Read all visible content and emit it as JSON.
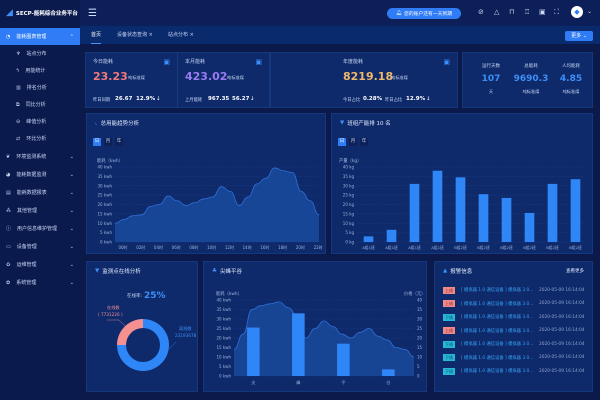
{
  "header": {
    "title": "SECP-能耗综合业务平台",
    "notice": "您的账户还有一天到期",
    "icons": [
      "shield-icon",
      "warning-icon",
      "lock-icon",
      "shirt-icon",
      "translate-icon",
      "fullscreen-icon"
    ]
  },
  "tabs": [
    {
      "label": "首页",
      "closable": false
    },
    {
      "label": "设备状态查询",
      "closable": true
    },
    {
      "label": "站点分布",
      "closable": true
    }
  ],
  "more_label": "更多",
  "sidebar": [
    {
      "label": "能耗图表管理",
      "active": true,
      "sub": false,
      "icon": "clock-icon"
    },
    {
      "label": "站点分布",
      "sub": true,
      "icon": "antenna-icon"
    },
    {
      "label": "用能统计",
      "sub": true,
      "icon": "energy-icon"
    },
    {
      "label": "排名分析",
      "sub": true,
      "icon": "bar-chart-icon"
    },
    {
      "label": "同比分析",
      "sub": true,
      "icon": "copy-icon"
    },
    {
      "label": "峰值分析",
      "sub": true,
      "icon": "minus-circle-icon"
    },
    {
      "label": "环比分析",
      "sub": true,
      "icon": "cycle-icon"
    },
    {
      "label": "环境监测系统",
      "sub": false,
      "icon": "leaf-icon"
    },
    {
      "label": "能耗数据监测",
      "sub": false,
      "icon": "pie-icon"
    },
    {
      "label": "能耗数据报表",
      "sub": false,
      "icon": "report-icon"
    },
    {
      "label": "其他管理",
      "sub": false,
      "icon": "grid-icon"
    },
    {
      "label": "用户信息维护管理",
      "sub": false,
      "icon": "info-icon"
    },
    {
      "label": "设备管理",
      "sub": false,
      "icon": "monitor-icon"
    },
    {
      "label": "运维管理",
      "sub": false,
      "icon": "recycle-icon"
    },
    {
      "label": "系统管理",
      "sub": false,
      "icon": "settings-icon"
    }
  ],
  "kpi": {
    "today": {
      "label": "今日能耗",
      "value": "23.23",
      "unit": "吨标准煤",
      "cmp_label": "昨日同期",
      "cmp_value": "26.67",
      "pct": "12.9%",
      "arrow": "↓",
      "color": "#f07a7a"
    },
    "month": {
      "label": "本月能耗",
      "value": "423.02",
      "unit": "吨标准煤",
      "cmp_label": "上月能耗",
      "cmp_value": "967.35",
      "pct": "56.27",
      "arrow": "↓",
      "color": "#9a7cf2"
    },
    "year": {
      "label": "年度能耗",
      "value": "8219.18",
      "unit": "吨标准煤",
      "cmp_label": "今日占比",
      "cmp_value": "0.28%",
      "cmp2_label": "昨日占比",
      "pct": "12.9%",
      "arrow": "↓",
      "color": "#f0b869"
    },
    "stats": [
      {
        "label": "运行天数",
        "value": "107",
        "unit": "天"
      },
      {
        "label": "总能耗",
        "value": "9690.3",
        "unit": "吨标准煤"
      },
      {
        "label": "人均能耗",
        "value": "4.85",
        "unit": "吨标准煤"
      }
    ]
  },
  "periods": [
    "日",
    "月",
    "年"
  ],
  "chart_data": [
    {
      "type": "area",
      "title": "总用能趋势分析",
      "ylabel": "能耗（kwh）",
      "ylim": [
        0,
        40
      ],
      "yticks": [
        "0 kwh",
        "5 kwh",
        "10 kwh",
        "15 kwh",
        "20 kwh",
        "25 kwh",
        "30 kwh",
        "35 kwh",
        "40 kwh"
      ],
      "xticks": [
        "00时",
        "02时",
        "04时",
        "06时",
        "08时",
        "10时",
        "12时",
        "14时",
        "16时",
        "18时",
        "20时",
        "22时"
      ],
      "values": [
        10,
        12,
        14,
        14.5,
        19,
        20,
        24.5,
        22,
        19.5,
        21,
        23,
        24,
        29.5,
        27,
        19.5,
        24,
        31,
        34,
        39.5,
        38,
        37,
        27,
        22,
        14.5
      ]
    },
    {
      "type": "bar",
      "title": "班组产能排 10 名",
      "ylabel": "产量（kg）",
      "ylim": [
        0,
        40
      ],
      "yticks": [
        "0 kg",
        "5 kg",
        "10 kg",
        "15 kg",
        "20 kg",
        "25 kg",
        "30 kg",
        "35 kg",
        "40 kg"
      ],
      "categories": [
        "A组1班",
        "A组1班",
        "A组1班",
        "A组1班",
        "B组2班",
        "B组2班",
        "B组2班",
        "B组2班",
        "B组2班",
        "B组2班"
      ],
      "values": [
        3,
        6.5,
        31,
        38,
        34.5,
        25.5,
        23.5,
        15.5,
        31,
        33.5
      ],
      "color": "#2f86f6"
    },
    {
      "type": "pie",
      "title": "监测点在线分析",
      "rate_label": "在线率:",
      "rate": "25%",
      "slices": [
        {
          "name": "在线数",
          "value": 7731226,
          "display": "( 7731226 )",
          "color": "#f59090"
        },
        {
          "name": "离线数",
          "value": 23193678,
          "display": "23193678",
          "color": "#2f86f6"
        }
      ]
    },
    {
      "type": "bar+area",
      "title": "尖峰平谷",
      "ylabel": "能耗（kwh）",
      "y2label": "价格（元）",
      "ylim": [
        0,
        40
      ],
      "yticks": [
        "0 kwh",
        "5 kwh",
        "10 kwh",
        "15 kwh",
        "20 kwh",
        "25 kwh",
        "30 kwh",
        "35 kwh",
        "40 kwh"
      ],
      "y2ticks": [
        "0",
        "5",
        "10",
        "15",
        "20",
        "25",
        "30",
        "35",
        "40"
      ],
      "categories": [
        "尖",
        "峰",
        "平",
        "谷"
      ],
      "values": [
        25.5,
        33,
        17,
        3.5
      ],
      "line": [
        14,
        22,
        35,
        37,
        38,
        39,
        36,
        32,
        20,
        25,
        29,
        26,
        22,
        20,
        23,
        25,
        21,
        19,
        15,
        14,
        10
      ]
    }
  ],
  "alarms": {
    "title": "报警信息",
    "more": "查看更多",
    "items": [
      {
        "tag": "上线",
        "type": "up",
        "msg": "[ 模拟器 1.0 通信设备 ] 模拟器 3.0...",
        "time": "2020-05-09 16:14:04"
      },
      {
        "tag": "上线",
        "type": "up",
        "msg": "[ 模拟器 1.0 通信设备 ] 模拟器 3.0...",
        "time": "2020-05-09 16:14:04"
      },
      {
        "tag": "下线",
        "type": "down",
        "msg": "[ 模拟器 1.0 通信设备 ] 模拟器 3.0...",
        "time": "2020-05-09 16:14:04"
      },
      {
        "tag": "上线",
        "type": "up",
        "msg": "[ 模拟器 1.0 通信设备 ] 模拟器 3.0...",
        "time": "2020-05-09 16:14:04"
      },
      {
        "tag": "下线",
        "type": "down",
        "msg": "[ 模拟器 1.0 通信设备 ] 模拟器 3.0...",
        "time": "2020-05-09 16:14:04"
      },
      {
        "tag": "下线",
        "type": "down",
        "msg": "[ 模拟器 1.0 通信设备 ] 模拟器 3.0...",
        "time": "2020-05-09 16:14:04"
      },
      {
        "tag": "下线",
        "type": "down",
        "msg": "[ 模拟器 1.0 通信设备 ] 模拟器 3.0...",
        "time": "2020-05-09 16:14:04"
      }
    ]
  }
}
